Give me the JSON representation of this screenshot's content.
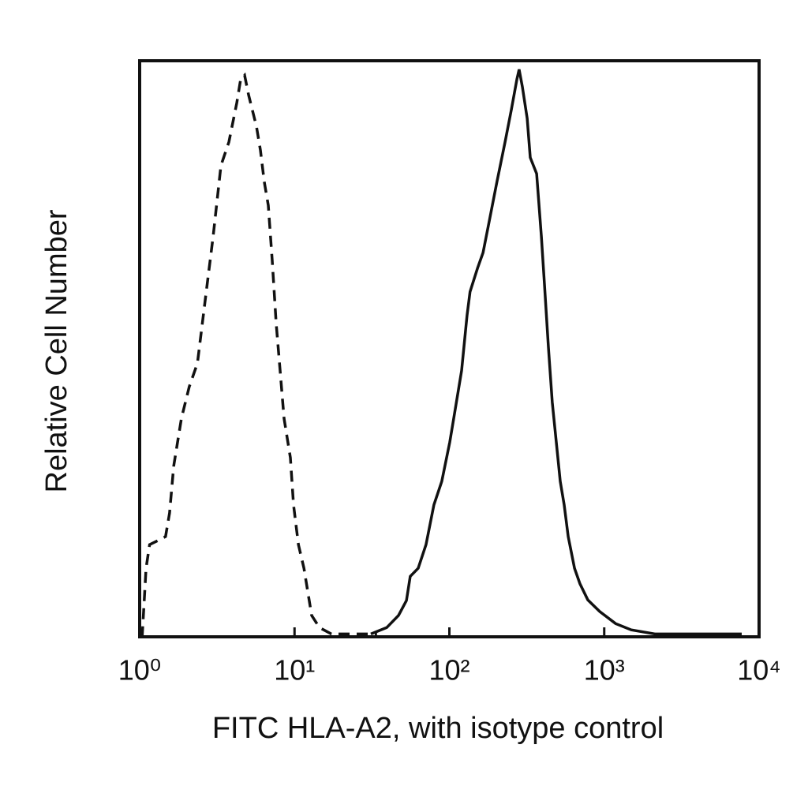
{
  "chart_data": {
    "type": "line",
    "x_label": "FITC HLA-A2, with isotype control",
    "y_label": "Relative Cell Number",
    "x_scale": "log",
    "xlim": [
      1,
      10000
    ],
    "xticks": [
      {
        "value": 1,
        "label": "10⁰"
      },
      {
        "value": 10,
        "label": "10¹"
      },
      {
        "value": 100,
        "label": "10²"
      },
      {
        "value": 1000,
        "label": "10³"
      },
      {
        "value": 10000,
        "label": "10⁴"
      }
    ],
    "ylim": [
      0,
      100
    ],
    "series": [
      {
        "color": "#111111",
        "line_style": "dashed",
        "x": [
          1.01,
          1.04,
          1.1,
          1.16,
          1.31,
          1.47,
          1.56,
          1.66,
          1.86,
          2.09,
          2.36,
          2.65,
          2.98,
          3.35,
          3.77,
          4.24,
          4.49,
          4.76,
          5.05,
          5.35,
          5.68,
          6.02,
          6.38,
          6.77,
          7.18,
          7.61,
          8.07,
          8.56,
          9.4,
          9.86,
          10.6,
          11.5,
          12.9,
          14.5,
          17.3,
          34.1
        ],
        "values": [
          0.5,
          0.3,
          11.9,
          16.0,
          16.7,
          17.4,
          21.5,
          29.7,
          37.9,
          43.4,
          47.5,
          58.5,
          69.5,
          81.8,
          85.9,
          92.7,
          96.8,
          97.5,
          94.1,
          91.4,
          88.6,
          84.5,
          79.0,
          74.9,
          65.3,
          54.4,
          46.2,
          37.9,
          31.1,
          22.9,
          16.0,
          11.9,
          3.7,
          1.6,
          0.5,
          0.5
        ]
      },
      {
        "color": "#111111",
        "line_style": "solid",
        "x": [
          31.1,
          39.4,
          46.9,
          52.8,
          55.9,
          62.9,
          70.7,
          79.5,
          89.4,
          100.6,
          106.7,
          120,
          130,
          136,
          152,
          165,
          181,
          203,
          229,
          251,
          273,
          282,
          296,
          318,
          333,
          366,
          393,
          411,
          436,
          462,
          490,
          520,
          551,
          585,
          643,
          697,
          784,
          935,
          1183,
          1494,
          2123,
          3020,
          7727
        ],
        "values": [
          0.5,
          1.6,
          3.7,
          6.3,
          10.5,
          11.9,
          16.0,
          22.9,
          27.0,
          33.8,
          37.9,
          46.2,
          55.8,
          59.9,
          64.0,
          66.7,
          72.2,
          79.0,
          85.9,
          91.4,
          96.8,
          98.5,
          95.5,
          90.0,
          83.2,
          80.4,
          69.5,
          61.2,
          50.3,
          40.7,
          33.8,
          27.0,
          22.9,
          17.4,
          11.9,
          9.2,
          6.4,
          4.4,
          2.3,
          1.2,
          0.5,
          0.5,
          0.5
        ]
      }
    ]
  }
}
